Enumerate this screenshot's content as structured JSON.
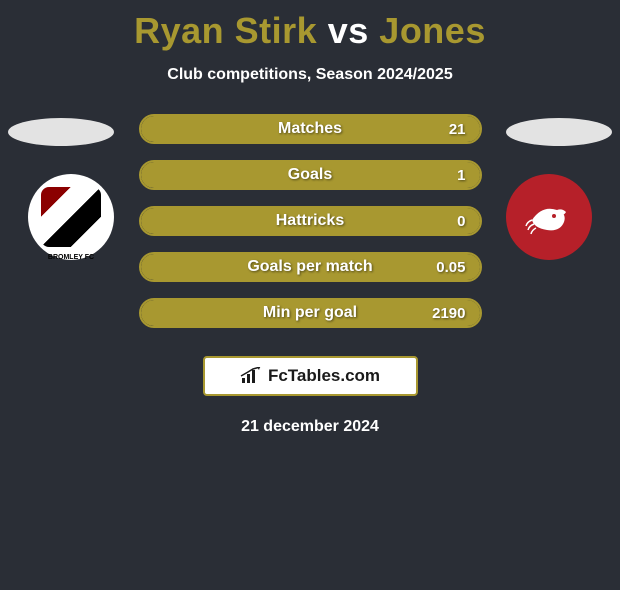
{
  "title": {
    "player1": "Ryan Stirk",
    "vs": "vs",
    "player2": "Jones",
    "player1_color": "#a89830",
    "player2_color": "#a89830"
  },
  "subtitle": "Club competitions, Season 2024/2025",
  "ellipse_color": "#e3e3e3",
  "badges": {
    "left_bg": "#ffffff",
    "right_bg": "#b62029"
  },
  "bars": [
    {
      "label": "Matches",
      "value": "21",
      "fill_pct": 100,
      "fill_color": "#a89830",
      "border_color": "#a89830"
    },
    {
      "label": "Goals",
      "value": "1",
      "fill_pct": 100,
      "fill_color": "#a89830",
      "border_color": "#a89830"
    },
    {
      "label": "Hattricks",
      "value": "0",
      "fill_pct": 100,
      "fill_color": "#a89830",
      "border_color": "#a89830"
    },
    {
      "label": "Goals per match",
      "value": "0.05",
      "fill_pct": 100,
      "fill_color": "#a89830",
      "border_color": "#a89830"
    },
    {
      "label": "Min per goal",
      "value": "2190",
      "fill_pct": 100,
      "fill_color": "#a89830",
      "border_color": "#a89830"
    }
  ],
  "logo": {
    "text": "FcTables.com",
    "border_color": "#a89830"
  },
  "date": "21 december 2024",
  "background_color": "#2a2e36"
}
